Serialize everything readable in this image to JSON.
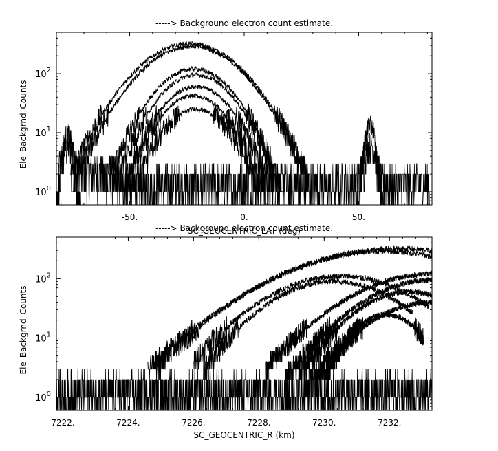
{
  "chart_data": [
    {
      "type": "line",
      "title": "-----> Background electron count estimate.",
      "xlabel": "SC_GEOCENTRIC_LAT (deg)",
      "ylabel": "Ele_Backgrnd_Counts",
      "xlim": [
        -82,
        82
      ],
      "ylim": [
        0.6,
        500
      ],
      "yscale": "log",
      "grid": false,
      "legend": "none",
      "x_ticks": [
        -50,
        0,
        50
      ],
      "x_tick_labels": [
        "-50.",
        "0.",
        "50."
      ],
      "y_ticks": [
        1,
        10,
        100
      ],
      "y_tick_labels": [
        "10^0",
        "10^1",
        "10^2"
      ],
      "noise_floor": {
        "x_range": [
          -81,
          81
        ],
        "values": [
          0,
          1,
          2,
          3,
          5
        ]
      },
      "side_bumps": [
        {
          "x_center": -77,
          "peak": 10
        },
        {
          "x_center": 55,
          "peak": 15
        }
      ],
      "series": [
        {
          "peak_x": -24,
          "peak": 320
        },
        {
          "peak_x": -23,
          "peak": 290
        },
        {
          "peak_x": -22,
          "peak": 120
        },
        {
          "peak_x": -21,
          "peak": 95
        },
        {
          "peak_x": -21,
          "peak": 60
        },
        {
          "peak_x": -22,
          "peak": 42
        },
        {
          "peak_x": -21,
          "peak": 25
        }
      ]
    },
    {
      "type": "line",
      "title": "-----> Background electron count estimate.",
      "xlabel": "SC_GEOCENTRIC_R (km)",
      "ylabel": "Ele_Backgrnd_Counts",
      "xlim": [
        7221.8,
        7233.3
      ],
      "ylim": [
        0.6,
        500
      ],
      "yscale": "log",
      "grid": false,
      "legend": "none",
      "x_ticks": [
        7222,
        7224,
        7226,
        7228,
        7230,
        7232
      ],
      "x_tick_labels": [
        "7222.",
        "7224.",
        "7226.",
        "7228.",
        "7230.",
        "7232."
      ],
      "y_ticks": [
        1,
        10,
        100
      ],
      "y_tick_labels": [
        "10^0",
        "10^1",
        "10^2"
      ],
      "noise_floor": {
        "x_range": [
          7221.8,
          7233.3
        ],
        "values": [
          0,
          1,
          2,
          3,
          5
        ]
      },
      "series": [
        {
          "x_start": 7224.6,
          "x_peak": 7232.3,
          "start": 3,
          "peak": 320
        },
        {
          "x_start": 7224.8,
          "x_peak": 7231.8,
          "start": 3,
          "peak": 290
        },
        {
          "x_start": 7226.0,
          "x_peak": 7230.5,
          "start": 4,
          "peak": 110
        },
        {
          "x_start": 7226.3,
          "x_peak": 7230.3,
          "start": 3,
          "peak": 90
        },
        {
          "x_start": 7228.2,
          "x_peak": 7233.3,
          "start": 3,
          "peak": 120
        },
        {
          "x_start": 7228.8,
          "x_peak": 7233.3,
          "start": 2,
          "peak": 95
        },
        {
          "x_start": 7229.2,
          "x_peak": 7232.6,
          "start": 2,
          "peak": 60
        },
        {
          "x_start": 7229.6,
          "x_peak": 7233.3,
          "start": 2,
          "peak": 40
        },
        {
          "x_start": 7230.0,
          "x_peak": 7231.9,
          "start": 2,
          "peak": 25
        }
      ]
    }
  ]
}
